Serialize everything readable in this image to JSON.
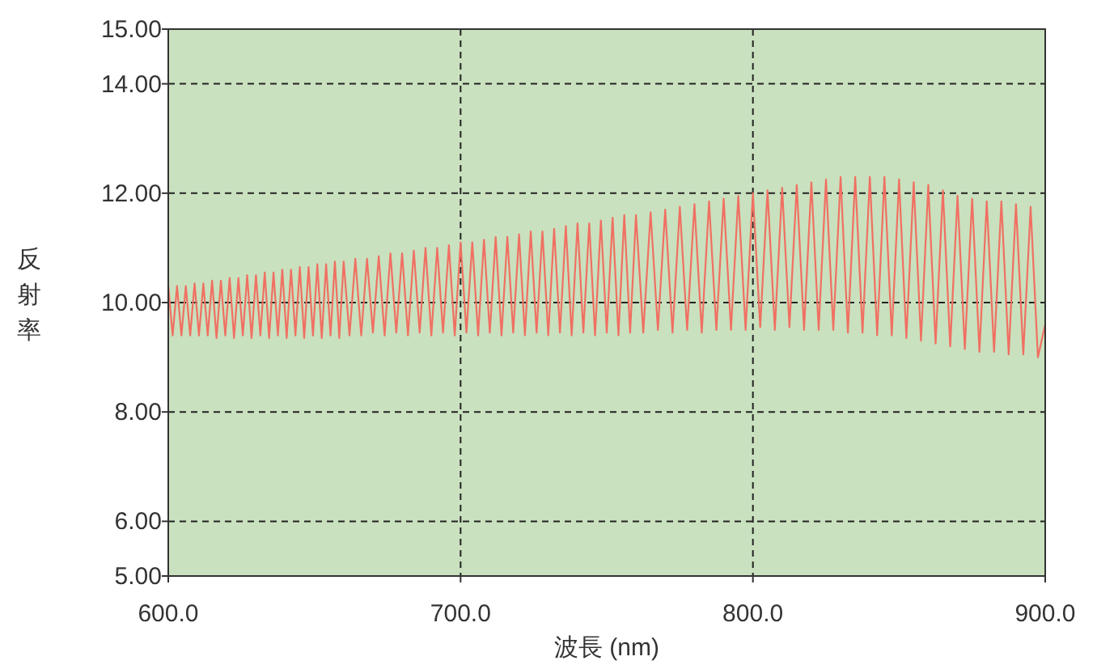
{
  "chart_data": {
    "type": "line",
    "xlabel": "波長 (nm)",
    "ylabel": "反射率",
    "xlim": [
      600,
      900
    ],
    "xticks": [
      {
        "value": 600,
        "label": "600.0"
      },
      {
        "value": 700,
        "label": "700.0"
      },
      {
        "value": 800,
        "label": "800.0"
      },
      {
        "value": 900,
        "label": "900.0"
      }
    ],
    "ylim": [
      5,
      15
    ],
    "yticks": [
      {
        "value": 5,
        "label": "5.00"
      },
      {
        "value": 6,
        "label": "6.00"
      },
      {
        "value": 8,
        "label": "8.00"
      },
      {
        "value": 10,
        "label": "10.00"
      },
      {
        "value": 12,
        "label": "12.00"
      },
      {
        "value": 14,
        "label": "14.00"
      },
      {
        "value": 15,
        "label": "15.00"
      }
    ],
    "grid": true,
    "line_style": "solid",
    "series": [
      {
        "color": "#f07062",
        "x": [
          600,
          601.5,
          603,
          604.5,
          606,
          607.5,
          609,
          610.5,
          612,
          613.5,
          615,
          616.5,
          618,
          619.5,
          621,
          622.5,
          624,
          625.5,
          627,
          628.5,
          630,
          631.5,
          633,
          634.5,
          636,
          637.5,
          639,
          640.5,
          642,
          643.5,
          645,
          646.5,
          648,
          649.5,
          651,
          652.5,
          654,
          655.5,
          657,
          658.5,
          660,
          662,
          664,
          666,
          668,
          670,
          672,
          674,
          676,
          678,
          680,
          682,
          684,
          686,
          688,
          690,
          692,
          694,
          696,
          698,
          700,
          702,
          704,
          706,
          708,
          710,
          712,
          714,
          716,
          718,
          720,
          722,
          724,
          726,
          728,
          730,
          732,
          734,
          736,
          738,
          740,
          742,
          744,
          746,
          748,
          750,
          752,
          754,
          756,
          758,
          760,
          762.5,
          765,
          767.5,
          770,
          772.5,
          775,
          777.5,
          780,
          782.5,
          785,
          787.5,
          790,
          792.5,
          795,
          797.5,
          800,
          802.5,
          805,
          807.5,
          810,
          812.5,
          815,
          817.5,
          820,
          822.5,
          825,
          827.5,
          830,
          832.5,
          835,
          837.5,
          840,
          842.5,
          845,
          847.5,
          850,
          852.5,
          855,
          857.5,
          860,
          862.5,
          865,
          867.5,
          870,
          872.5,
          875,
          877.5,
          880,
          882.5,
          885,
          887.5,
          890,
          892.5,
          895,
          897.5,
          900
        ],
        "values": [
          10.3,
          9.4,
          10.3,
          9.4,
          10.3,
          9.4,
          10.35,
          9.4,
          10.35,
          9.4,
          10.4,
          9.35,
          10.4,
          9.4,
          10.45,
          9.35,
          10.45,
          9.4,
          10.5,
          9.35,
          10.5,
          9.4,
          10.55,
          9.35,
          10.55,
          9.4,
          10.6,
          9.35,
          10.6,
          9.4,
          10.65,
          9.35,
          10.65,
          9.4,
          10.7,
          9.35,
          10.7,
          9.4,
          10.75,
          9.35,
          10.75,
          9.4,
          10.8,
          9.4,
          10.8,
          9.45,
          10.85,
          9.4,
          10.9,
          9.45,
          10.9,
          9.4,
          10.95,
          9.45,
          11.0,
          9.4,
          11.0,
          9.45,
          11.05,
          9.4,
          11.1,
          9.45,
          11.1,
          9.4,
          11.15,
          9.45,
          11.2,
          9.4,
          11.2,
          9.45,
          11.25,
          9.4,
          11.3,
          9.45,
          11.3,
          9.4,
          11.35,
          9.45,
          11.4,
          9.4,
          11.45,
          9.45,
          11.45,
          9.4,
          11.5,
          9.45,
          11.55,
          9.4,
          11.6,
          9.45,
          11.6,
          9.45,
          11.65,
          9.5,
          11.7,
          9.45,
          11.75,
          9.5,
          11.8,
          9.45,
          11.85,
          9.5,
          11.9,
          9.5,
          11.95,
          9.5,
          12.0,
          9.55,
          12.05,
          9.5,
          12.1,
          9.55,
          12.15,
          9.5,
          12.2,
          9.5,
          12.25,
          9.5,
          12.3,
          9.45,
          12.3,
          9.45,
          12.3,
          9.4,
          12.3,
          9.4,
          12.25,
          9.35,
          12.2,
          9.3,
          12.15,
          9.25,
          12.05,
          9.2,
          11.95,
          9.15,
          11.9,
          9.1,
          11.85,
          9.1,
          11.85,
          9.05,
          11.8,
          9.05,
          11.75,
          9.0,
          9.6
        ]
      }
    ]
  }
}
